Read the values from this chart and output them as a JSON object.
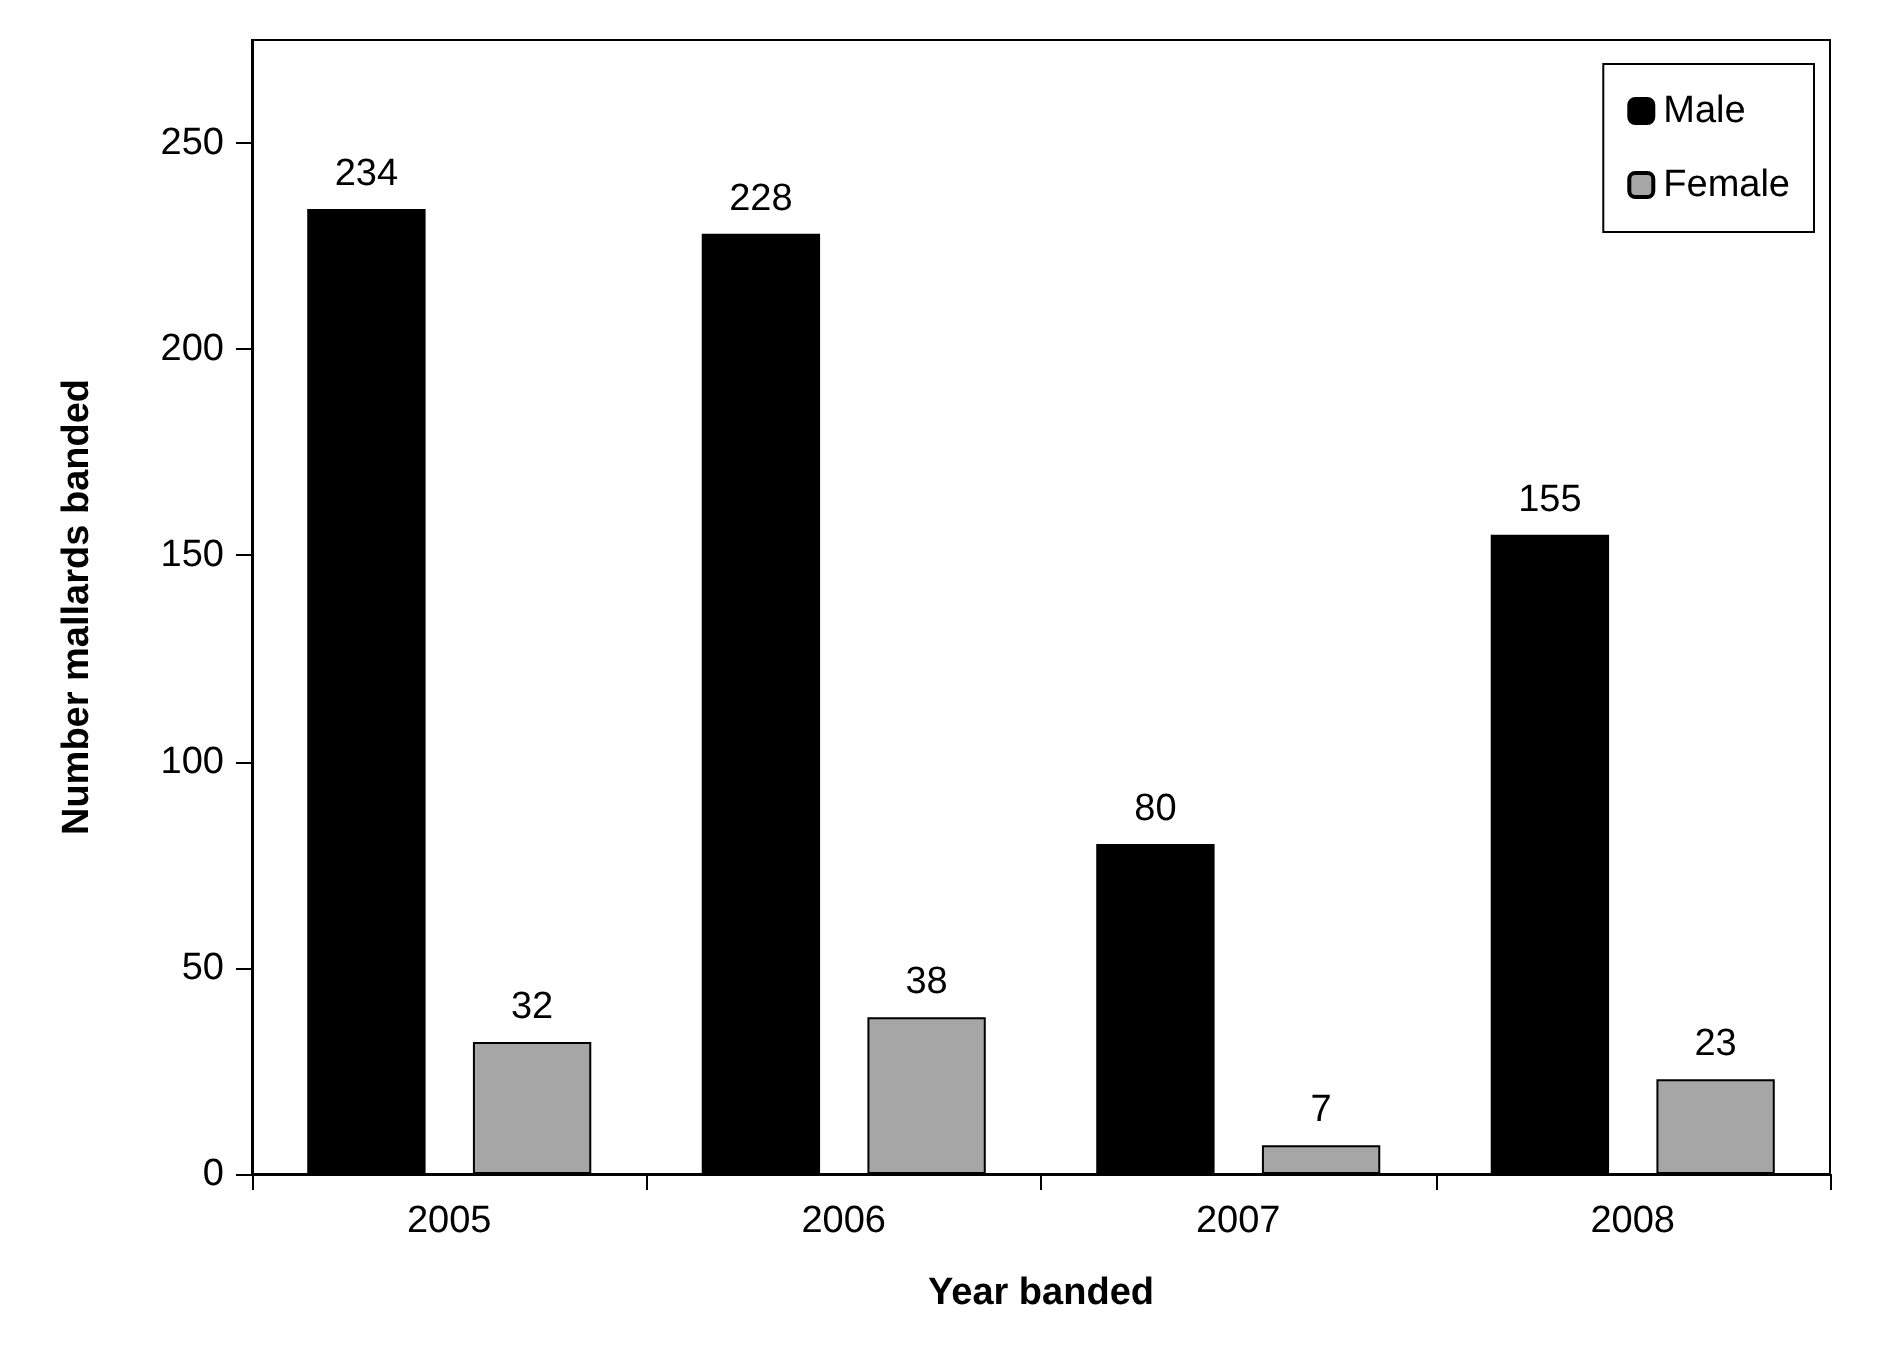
{
  "chart_data": {
    "type": "bar",
    "xlabel": "Year banded",
    "ylabel": "Number mallards banded",
    "categories": [
      "2005",
      "2006",
      "2007",
      "2008"
    ],
    "series": [
      {
        "name": "Male",
        "color": "#000000",
        "values": [
          234,
          228,
          80,
          155
        ]
      },
      {
        "name": "Female",
        "color": "#a6a6a6",
        "values": [
          32,
          38,
          7,
          23
        ]
      }
    ],
    "ylim": [
      0,
      275
    ],
    "yticks": [
      0,
      50,
      100,
      150,
      200,
      250
    ],
    "data_labels": true,
    "legend": "top right",
    "grid": false
  }
}
